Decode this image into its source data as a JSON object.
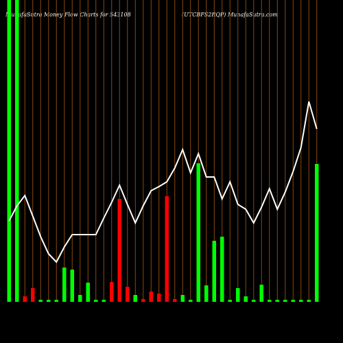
{
  "chart_data": {
    "type": "bar",
    "title": "MunafaSutra  Money Flow  Charts for 543108",
    "subtitle": "(UTCBFS2RQP) MunafaSutra.com",
    "ylim": [
      0,
      440
    ],
    "bars": {
      "values": [
        460,
        450,
        8,
        20,
        3,
        3,
        3,
        50,
        47,
        10,
        28,
        3,
        3,
        29,
        150,
        22,
        10,
        4,
        15,
        12,
        154,
        4,
        10,
        3,
        202,
        24,
        89,
        95,
        3,
        20,
        8,
        3,
        25,
        3,
        3,
        3,
        3,
        3,
        3,
        201
      ],
      "colors": [
        "#00ff00",
        "#00ff00",
        "#ff0000",
        "#ff0000",
        "#00ff00",
        "#00ff00",
        "#00ff00",
        "#00ff00",
        "#00ff00",
        "#00ff00",
        "#00ff00",
        "#00ff00",
        "#00ff00",
        "#ff0000",
        "#ff0000",
        "#ff0000",
        "#00ff00",
        "#ff0000",
        "#ff0000",
        "#ff0000",
        "#ff0000",
        "#ff0000",
        "#00ff00",
        "#00ff00",
        "#00ff00",
        "#00ff00",
        "#00ff00",
        "#00ff00",
        "#00ff00",
        "#00ff00",
        "#00ff00",
        "#00ff00",
        "#00ff00",
        "#00ff00",
        "#00ff00",
        "#00ff00",
        "#00ff00",
        "#00ff00",
        "#00ff00",
        "#00ff00"
      ]
    },
    "line": {
      "color": "#ffffff",
      "values": [
        118,
        140,
        155,
        125,
        95,
        70,
        58,
        80,
        98,
        98,
        98,
        98,
        122,
        145,
        170,
        142,
        115,
        140,
        162,
        168,
        175,
        195,
        222,
        188,
        216,
        182,
        182,
        150,
        175,
        142,
        135,
        115,
        138,
        165,
        135,
        160,
        190,
        225,
        292,
        252
      ]
    },
    "gridline_color": "#8b4a0e"
  }
}
